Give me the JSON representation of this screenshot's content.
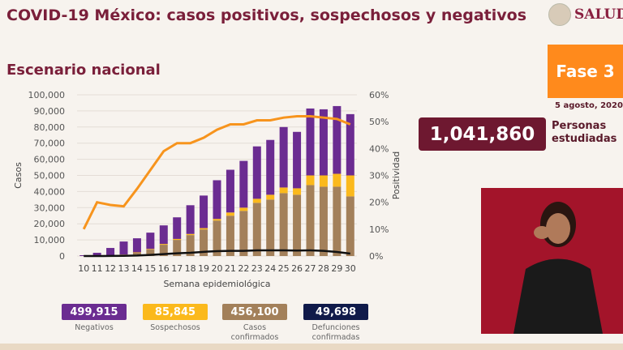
{
  "header": {
    "title": "COVID-19 México: casos positivos, sospechosos y negativos",
    "subtitle": "Escenario nacional",
    "logo": "SALUD"
  },
  "phase": {
    "label": "Fase 3",
    "color": "#ff8a1c"
  },
  "date": "5 agosto, 2020",
  "studied": {
    "value": "1,041,860",
    "label1": "Personas",
    "label2": "estudiadas"
  },
  "stats": [
    {
      "value": "499,915",
      "label": "Negativos",
      "label2": "",
      "color": "#6b2c91"
    },
    {
      "value": "85,845",
      "label": "Sospechosos",
      "label2": "",
      "color": "#fbb91c"
    },
    {
      "value": "456,100",
      "label": "Casos",
      "label2": "confirmados",
      "color": "#a3805a"
    },
    {
      "value": "49,698",
      "label": "Defunciones",
      "label2": "confirmadas",
      "color": "#101a4a"
    }
  ],
  "chart_data": {
    "type": "bar",
    "stacked": true,
    "xlabel": "Semana epidemiológica",
    "ylabel": "Casos",
    "y2label": "Positividad",
    "ylim": [
      0,
      100000
    ],
    "y2lim": [
      0,
      60
    ],
    "yticks": [
      "0",
      "10,000",
      "20,000",
      "30,000",
      "40,000",
      "50,000",
      "60,000",
      "70,000",
      "80,000",
      "90,000",
      "100,000"
    ],
    "y2ticks": [
      "0%",
      "10%",
      "20%",
      "30%",
      "40%",
      "50%",
      "60%"
    ],
    "categories": [
      "10",
      "11",
      "12",
      "13",
      "14",
      "15",
      "16",
      "17",
      "18",
      "19",
      "20",
      "21",
      "22",
      "23",
      "24",
      "25",
      "26",
      "27",
      "28",
      "29",
      "30"
    ],
    "series": [
      {
        "name": "Casos confirmados",
        "color": "#a3805a",
        "values": [
          0,
          100,
          300,
          700,
          2000,
          4000,
          7000,
          10000,
          13000,
          16500,
          22000,
          25000,
          28000,
          33000,
          35000,
          39000,
          38000,
          44000,
          43000,
          43000,
          37000
        ]
      },
      {
        "name": "Sospechosos",
        "color": "#fbb91c",
        "values": [
          0,
          50,
          100,
          200,
          300,
          400,
          500,
          600,
          700,
          800,
          1000,
          2000,
          2000,
          2500,
          3000,
          3500,
          4000,
          6000,
          7000,
          8000,
          13000
        ]
      },
      {
        "name": "Negativos",
        "color": "#6b2c91",
        "values": [
          500,
          1850,
          4600,
          8100,
          8700,
          10100,
          11500,
          13400,
          17800,
          20200,
          24000,
          26500,
          29000,
          32500,
          34000,
          37500,
          35000,
          41500,
          41000,
          42000,
          38000
        ]
      }
    ],
    "lines": [
      {
        "name": "Positividad",
        "axis": "right",
        "color": "#f7941d",
        "values": [
          10,
          20,
          19,
          18.5,
          25,
          32,
          39,
          42,
          42,
          44,
          47,
          49,
          49,
          50.5,
          50.5,
          51.5,
          52,
          52,
          51.5,
          51,
          49
        ]
      },
      {
        "name": "Defunciones",
        "axis": "left",
        "color": "#111111",
        "values": [
          0,
          0,
          50,
          150,
          300,
          700,
          1200,
          1700,
          2000,
          2600,
          3000,
          3200,
          3200,
          3500,
          3500,
          3500,
          3400,
          3500,
          3200,
          2500,
          1500
        ]
      }
    ]
  }
}
